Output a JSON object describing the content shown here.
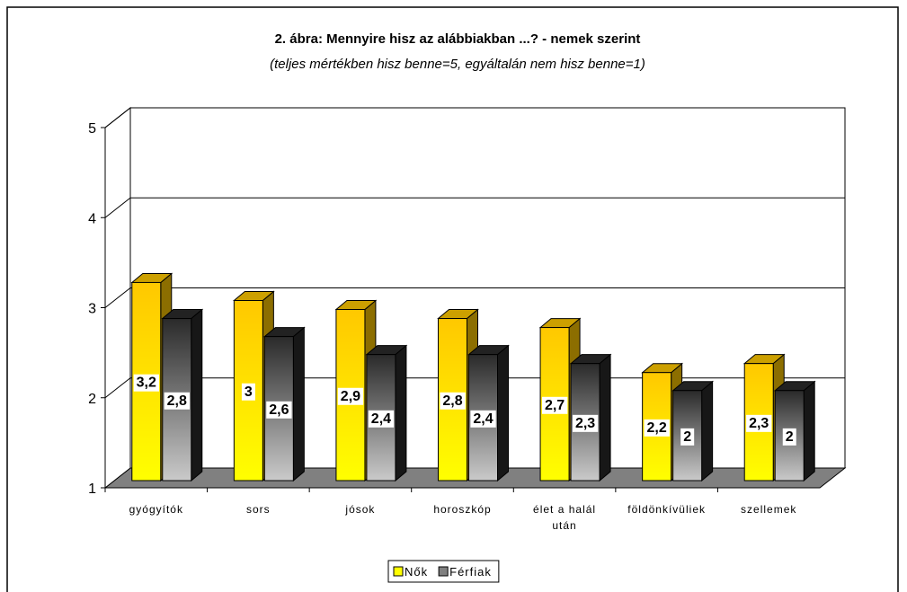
{
  "chart_data": {
    "type": "bar3d",
    "title": "2. ábra: Mennyire hisz az alábbiakban ...?  - nemek szerint",
    "subtitle": "(teljes mértékben hisz benne=5, egyáltalán nem hisz benne=1)",
    "categories": [
      "gyógyítók",
      "sors",
      "jósok",
      "horoszkóp",
      "élet a halál után",
      "földönkívüliek",
      "szellemek"
    ],
    "series": [
      {
        "name": "Nők",
        "color": "#ffc800",
        "values": [
          3.2,
          3,
          2.9,
          2.8,
          2.7,
          2.2,
          2.3
        ],
        "value_labels": [
          "3,2",
          "3",
          "2,9",
          "2,8",
          "2,7",
          "2,2",
          "2,3"
        ]
      },
      {
        "name": "Férfiak",
        "color": "#2a2a2a",
        "values": [
          2.8,
          2.6,
          2.4,
          2.4,
          2.3,
          2,
          2
        ],
        "value_labels": [
          "2,8",
          "2,6",
          "2,4",
          "2,4",
          "2,3",
          "2",
          "2"
        ]
      }
    ],
    "ylim": [
      1,
      5
    ],
    "yticks": [
      1,
      2,
      3,
      4,
      5
    ],
    "grid": true,
    "legend": "bottom"
  }
}
